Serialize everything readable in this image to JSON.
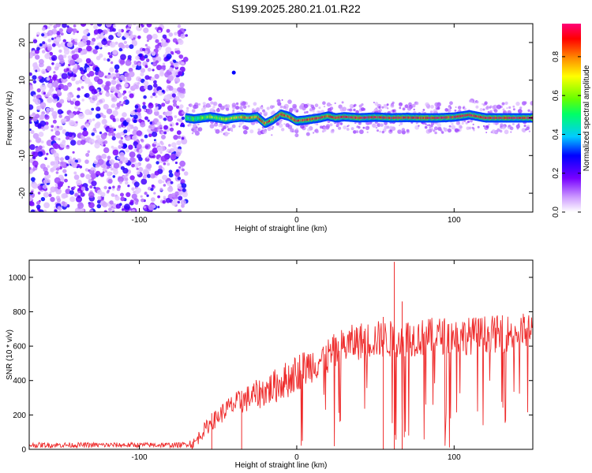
{
  "figure": {
    "title": "S199.2025.280.21.01.R22"
  },
  "chart_data": [
    {
      "type": "heatmap",
      "title": "S199.2025.280.21.01.R22",
      "xlabel": "Height of straight line (km)",
      "ylabel": "Frequency (Hz)",
      "xlim": [
        -170,
        150
      ],
      "ylim": [
        -25,
        25
      ],
      "xticks": [
        -100,
        0,
        100
      ],
      "yticks": [
        -20,
        -10,
        0,
        10,
        20
      ],
      "colorbar": {
        "label": "Normalized spectral amplitude",
        "range": [
          0,
          0.97
        ],
        "ticks": [
          0.0,
          0.2,
          0.4,
          0.6,
          0.8
        ],
        "tick_labels": [
          "0.0",
          "0.2",
          "0.4",
          "0.6",
          "0.8"
        ],
        "colors": [
          "#ffffff",
          "#cc99ff",
          "#7700ff",
          "#0000ff",
          "#00ccff",
          "#00ff66",
          "#66ff00",
          "#ffff00",
          "#ff8800",
          "#ff0000",
          "#ff0077"
        ]
      },
      "noise_region": {
        "x": [
          -170,
          -70
        ],
        "y": [
          -25,
          25
        ],
        "amplitude": [
          0.05,
          0.3
        ]
      },
      "signal_ridge": {
        "x": [
          -70,
          -65,
          -60,
          -55,
          -50,
          -45,
          -40,
          -35,
          -30,
          -25,
          -20,
          -15,
          -10,
          -5,
          0,
          5,
          10,
          15,
          20,
          25,
          30,
          40,
          50,
          60,
          70,
          80,
          90,
          100,
          110,
          120,
          130,
          140,
          150
        ],
        "frequency": [
          0,
          -0.3,
          0,
          0.3,
          0,
          -0.4,
          0,
          0.2,
          0,
          0.3,
          -1.5,
          -0.5,
          1,
          0.4,
          -0.8,
          -0.6,
          -0.3,
          0,
          0.5,
          0,
          0.3,
          0,
          0.2,
          0,
          0.1,
          0,
          0,
          0.2,
          0.8,
          0,
          0,
          0,
          0
        ],
        "amplitude": [
          0.45,
          0.5,
          0.55,
          0.6,
          0.6,
          0.65,
          0.7,
          0.75,
          0.8,
          0.82,
          0.85,
          0.82,
          0.85,
          0.87,
          0.88,
          0.88,
          0.88,
          0.9,
          0.9,
          0.9,
          0.9,
          0.92,
          0.92,
          0.92,
          0.92,
          0.92,
          0.92,
          0.93,
          0.93,
          0.93,
          0.93,
          0.93,
          0.93
        ]
      },
      "annotations_sparse": [
        {
          "x": -40,
          "y": 12,
          "amplitude": 0.3
        },
        {
          "x": -55,
          "y": 5,
          "amplitude": 0.15
        }
      ]
    },
    {
      "type": "line",
      "xlabel": "Height of straight line (km)",
      "ylabel": "SNR (10 * v/v)",
      "xlim": [
        -170,
        150
      ],
      "ylim": [
        0,
        1100
      ],
      "xticks": [
        -100,
        0,
        100
      ],
      "yticks": [
        0,
        200,
        400,
        600,
        800,
        1000
      ],
      "series": [
        {
          "color": "#ee2b2b",
          "x": [
            -170,
            -150,
            -130,
            -110,
            -90,
            -75,
            -65,
            -60,
            -55,
            -50,
            -45,
            -40,
            -35,
            -30,
            -25,
            -20,
            -15,
            -10,
            -5,
            0,
            5,
            10,
            15,
            20,
            25,
            30,
            40,
            50,
            60,
            62,
            70,
            80,
            90,
            100,
            110,
            120,
            130,
            140,
            150
          ],
          "y": [
            25,
            25,
            25,
            25,
            25,
            25,
            35,
            100,
            150,
            190,
            230,
            260,
            280,
            300,
            320,
            340,
            360,
            390,
            410,
            450,
            470,
            500,
            520,
            540,
            570,
            600,
            630,
            640,
            640,
            1100,
            650,
            650,
            660,
            660,
            660,
            670,
            670,
            680,
            690
          ],
          "spikes": [
            {
              "x": 62,
              "y": 1090
            },
            {
              "x": 67,
              "y": 860
            },
            {
              "x": 55,
              "y": 770
            },
            {
              "x": -35,
              "y": 340
            },
            {
              "x": -54,
              "y": 210
            }
          ]
        }
      ]
    }
  ]
}
